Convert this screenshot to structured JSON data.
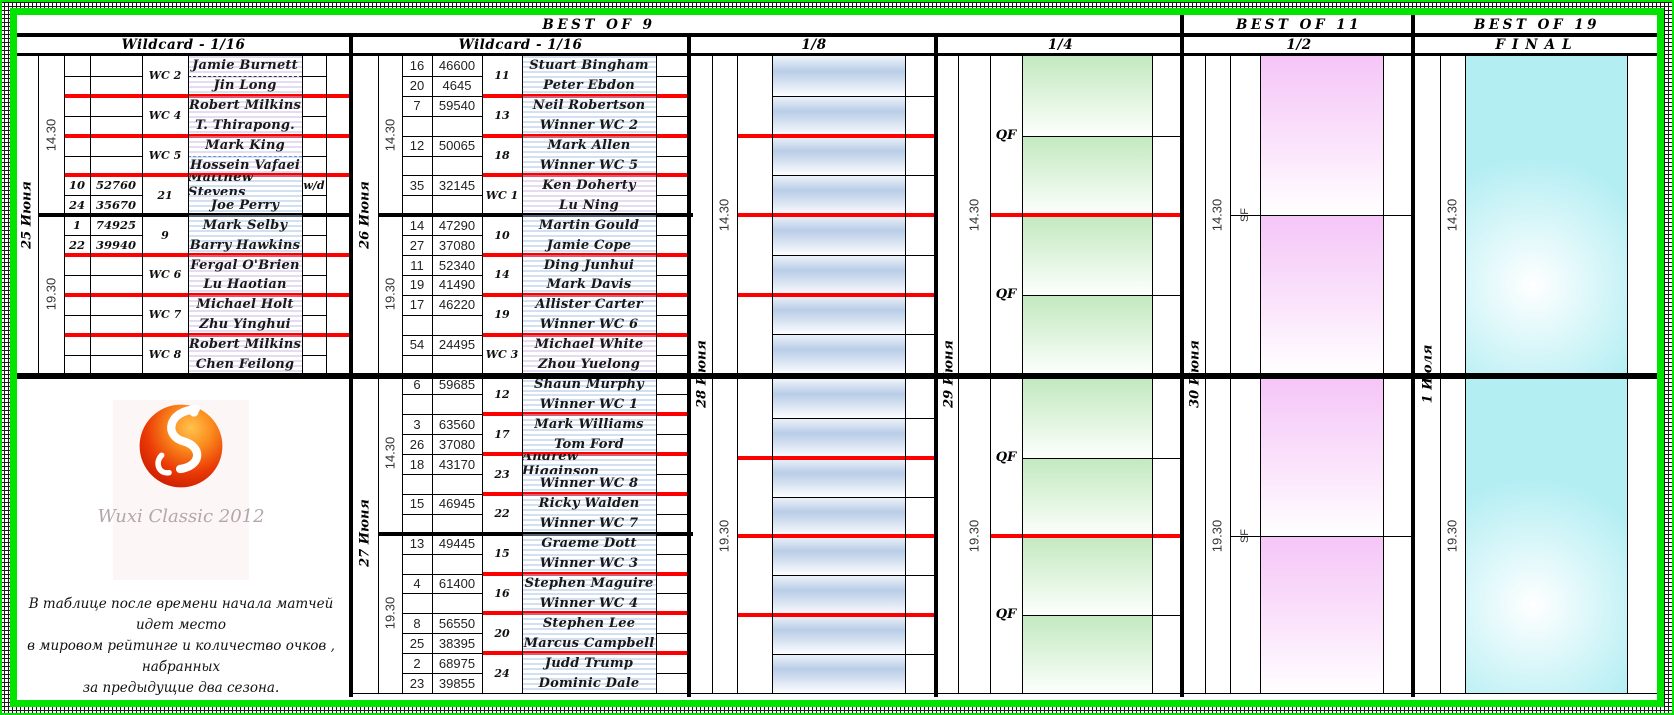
{
  "stage_headers": [
    {
      "label": "BEST OF 9"
    },
    {
      "label": "BEST OF 11"
    },
    {
      "label": "BEST OF 19"
    }
  ],
  "round_headers": [
    {
      "label": "Wildcard - 1/16"
    },
    {
      "label": "Wildcard - 1/16"
    },
    {
      "label": "1/8"
    },
    {
      "label": "1/4"
    },
    {
      "label": "1/2"
    },
    {
      "label": "FINAL"
    }
  ],
  "section1": {
    "date": "25 Июня",
    "sessions": [
      {
        "time": "14.30",
        "matches": [
          {
            "label": "WC 2",
            "tint": "lavender",
            "sep": "dashed-black",
            "players": [
              {
                "name": "Jamie Burnett"
              },
              {
                "name": "Jin Long"
              }
            ]
          },
          {
            "label": "WC 4",
            "tint": "lavender",
            "players": [
              {
                "name": "Robert Milkins"
              },
              {
                "name": "T. Thirapong."
              }
            ]
          },
          {
            "label": "WC 5",
            "tint": "lavender",
            "sep": "dashed-blue",
            "players": [
              {
                "name": "Mark King"
              },
              {
                "name": "Hossein Vafaei"
              }
            ]
          },
          {
            "label": "21",
            "tint": "blue",
            "players": [
              {
                "rank": "10",
                "points": "52760",
                "name": "Matthew Stevens",
                "note": "w/d"
              },
              {
                "rank": "24",
                "points": "35670",
                "name": "Joe Perry"
              }
            ]
          }
        ]
      },
      {
        "time": "19.30",
        "matches": [
          {
            "label": "9",
            "tint": "blue",
            "players": [
              {
                "rank": "1",
                "points": "74925",
                "name": "Mark Selby"
              },
              {
                "rank": "22",
                "points": "39940",
                "name": "Barry Hawkins"
              }
            ]
          },
          {
            "label": "WC 6",
            "tint": "lavender",
            "players": [
              {
                "name": "Fergal O'Brien"
              },
              {
                "name": "Lu  Haotian"
              }
            ]
          },
          {
            "label": "WC 7",
            "tint": "lavender",
            "players": [
              {
                "name": "Michael Holt"
              },
              {
                "name": "Zhu Yinghui"
              }
            ]
          },
          {
            "label": "WC 8",
            "tint": "lavender",
            "players": [
              {
                "name": "Robert Milkins"
              },
              {
                "name": "Chen Feilong"
              }
            ]
          }
        ]
      }
    ]
  },
  "section2": {
    "days": [
      {
        "date": "26 Июня",
        "sessions": [
          {
            "time": "14.30",
            "matches": [
              {
                "label": "11",
                "tint": "blue",
                "players": [
                  {
                    "rank": "16",
                    "points": "46600",
                    "name": "Stuart Bingham"
                  },
                  {
                    "rank": "20",
                    "points": "4645",
                    "name": "Peter Ebdon"
                  }
                ]
              },
              {
                "label": "13",
                "tint": "blue",
                "players": [
                  {
                    "rank": "7",
                    "points": "59540",
                    "name": "Neil Robertson"
                  },
                  {
                    "name": "Winner WC 2"
                  }
                ]
              },
              {
                "label": "18",
                "tint": "blue",
                "players": [
                  {
                    "rank": "12",
                    "points": "50065",
                    "name": "Mark Allen"
                  },
                  {
                    "name": "Winner WC 5"
                  }
                ]
              },
              {
                "label": "WC 1",
                "tint": "lavender",
                "players": [
                  {
                    "rank": "35",
                    "points": "32145",
                    "name": "Ken Doherty"
                  },
                  {
                    "name": "Lu Ning"
                  }
                ]
              }
            ]
          },
          {
            "time": "19.30",
            "matches": [
              {
                "label": "10",
                "tint": "blue",
                "players": [
                  {
                    "rank": "14",
                    "points": "47290",
                    "name": "Martin Gould"
                  },
                  {
                    "rank": "27",
                    "points": "37080",
                    "name": "Jamie Cope"
                  }
                ]
              },
              {
                "label": "14",
                "tint": "blue",
                "players": [
                  {
                    "rank": "11",
                    "points": "52340",
                    "name": "Ding Junhui"
                  },
                  {
                    "rank": "19",
                    "points": "41490",
                    "name": "Mark Davis"
                  }
                ]
              },
              {
                "label": "19",
                "tint": "blue",
                "players": [
                  {
                    "rank": "17",
                    "points": "46220",
                    "name": "Allister Carter"
                  },
                  {
                    "name": "Winner WC 6"
                  }
                ]
              },
              {
                "label": "WC 3",
                "tint": "lavender",
                "players": [
                  {
                    "rank": "54",
                    "points": "24495",
                    "name": "Michael White"
                  },
                  {
                    "name": "Zhou Yuelong"
                  }
                ]
              }
            ]
          }
        ]
      },
      {
        "date": "27 Июня",
        "sessions": [
          {
            "time": "14.30",
            "matches": [
              {
                "label": "12",
                "tint": "blue",
                "players": [
                  {
                    "rank": "6",
                    "points": "59685",
                    "name": "Shaun Murphy"
                  },
                  {
                    "name": "Winner WC 1"
                  }
                ]
              },
              {
                "label": "17",
                "tint": "blue",
                "players": [
                  {
                    "rank": "3",
                    "points": "63560",
                    "name": "Mark Williams"
                  },
                  {
                    "rank": "26",
                    "points": "37080",
                    "name": "Tom Ford"
                  }
                ]
              },
              {
                "label": "23",
                "tint": "blue",
                "players": [
                  {
                    "rank": "18",
                    "points": "43170",
                    "name": "Andrew Higginson"
                  },
                  {
                    "name": "Winner WC 8"
                  }
                ]
              },
              {
                "label": "22",
                "tint": "blue",
                "players": [
                  {
                    "rank": "15",
                    "points": "46945",
                    "name": "Ricky Walden"
                  },
                  {
                    "name": "Winner WC 7"
                  }
                ]
              }
            ]
          },
          {
            "time": "19.30",
            "matches": [
              {
                "label": "15",
                "tint": "blue",
                "players": [
                  {
                    "rank": "13",
                    "points": "49445",
                    "name": "Graeme Dott"
                  },
                  {
                    "name": "Winner WC 3"
                  }
                ]
              },
              {
                "label": "16",
                "tint": "blue",
                "players": [
                  {
                    "rank": "4",
                    "points": "61400",
                    "name": "Stephen Maguire"
                  },
                  {
                    "name": "Winner WC 4"
                  }
                ]
              },
              {
                "label": "20",
                "tint": "blue",
                "players": [
                  {
                    "rank": "8",
                    "points": "56550",
                    "name": "Stephen Lee"
                  },
                  {
                    "rank": "25",
                    "points": "38395",
                    "name": "Marcus Campbell"
                  }
                ]
              },
              {
                "label": "24",
                "tint": "blue",
                "players": [
                  {
                    "rank": "2",
                    "points": "68975",
                    "name": "Judd Trump"
                  },
                  {
                    "rank": "23",
                    "points": "39855",
                    "name": "Dominic Dale"
                  }
                ]
              }
            ]
          }
        ]
      }
    ]
  },
  "section_eighth": {
    "date": "28 Июня",
    "times": [
      "14.30",
      "19.30"
    ]
  },
  "section_quarter": {
    "date": "29 Июня",
    "times": [
      "14.30",
      "19.30"
    ],
    "match_label": "QF"
  },
  "section_semi": {
    "date": "30 Июня",
    "times": [
      "14.30",
      "19.30"
    ],
    "match_label": "SF"
  },
  "section_final": {
    "date": "1 Июля",
    "times": [
      "14.30",
      "19.30"
    ]
  },
  "footer": {
    "logo_text": "Wuxi Classic 2012",
    "note_lines": [
      "В таблице после времени начала матчей идет место",
      "в мировом рейтинге и количество очков , набранных",
      "за предыдущие два сезона."
    ]
  },
  "colors": {
    "frame_green": "#00e400",
    "red_line": "#ff0000",
    "eighth_cell_blue": "#b9cde7",
    "quarter_cell_green": "#c2e9bf",
    "semi_cell_pink": "#f5c5f7",
    "final_cell_cyan": "#b3eef3"
  }
}
